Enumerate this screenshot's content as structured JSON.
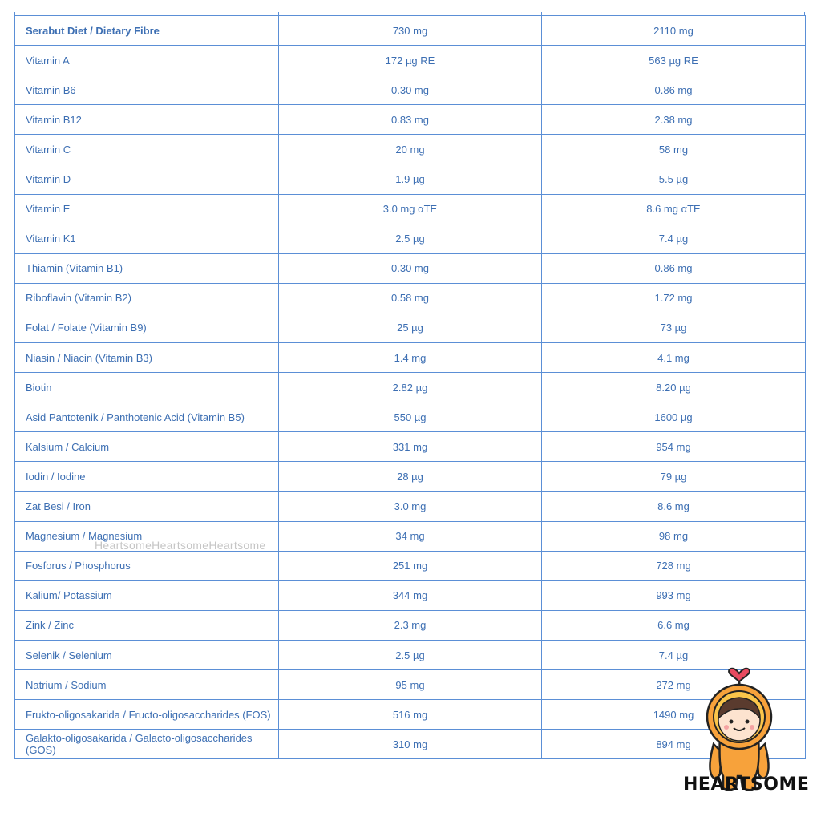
{
  "table": {
    "rows": [
      {
        "name": "Serabut Diet / Dietary Fibre",
        "col1": "730 mg",
        "col2": "2110 mg",
        "bold": true
      },
      {
        "name": "Vitamin A",
        "col1": "172 µg RE",
        "col2": "563 µg RE"
      },
      {
        "name": "Vitamin B6",
        "col1": "0.30 mg",
        "col2": "0.86 mg"
      },
      {
        "name": "Vitamin B12",
        "col1": "0.83 mg",
        "col2": "2.38 mg"
      },
      {
        "name": "Vitamin C",
        "col1": "20 mg",
        "col2": "58 mg"
      },
      {
        "name": "Vitamin D",
        "col1": "1.9 µg",
        "col2": "5.5 µg"
      },
      {
        "name": "Vitamin E",
        "col1": "3.0 mg αTE",
        "col2": "8.6 mg αTE"
      },
      {
        "name": "Vitamin K1",
        "col1": "2.5 µg",
        "col2": "7.4 µg"
      },
      {
        "name": "Thiamin (Vitamin B1)",
        "col1": "0.30 mg",
        "col2": "0.86 mg"
      },
      {
        "name": "Riboflavin (Vitamin B2)",
        "col1": "0.58 mg",
        "col2": "1.72 mg"
      },
      {
        "name": "Folat / Folate (Vitamin B9)",
        "col1": "25 µg",
        "col2": "73 µg"
      },
      {
        "name": "Niasin / Niacin (Vitamin B3)",
        "col1": "1.4 mg",
        "col2": "4.1 mg"
      },
      {
        "name": "Biotin",
        "col1": "2.82 µg",
        "col2": "8.20 µg"
      },
      {
        "name": "Asid Pantotenik / Panthotenic Acid (Vitamin B5)",
        "col1": "550 µg",
        "col2": "1600 µg"
      },
      {
        "name": "Kalsium / Calcium",
        "col1": "331 mg",
        "col2": "954 mg"
      },
      {
        "name": "Iodin / Iodine",
        "col1": "28 µg",
        "col2": "79 µg"
      },
      {
        "name": "Zat Besi / Iron",
        "col1": "3.0 mg",
        "col2": "8.6 mg"
      },
      {
        "name": "Magnesium / Magnesium",
        "col1": "34 mg",
        "col2": "98 mg"
      },
      {
        "name": "Fosforus / Phosphorus",
        "col1": "251 mg",
        "col2": "728 mg"
      },
      {
        "name": "Kalium/ Potassium",
        "col1": "344 mg",
        "col2": "993 mg"
      },
      {
        "name": "Zink / Zinc",
        "col1": "2.3 mg",
        "col2": "6.6 mg"
      },
      {
        "name": "Selenik / Selenium",
        "col1": "2.5 µg",
        "col2": "7.4 µg"
      },
      {
        "name": "Natrium / Sodium",
        "col1": "95 mg",
        "col2": "272 mg"
      },
      {
        "name": "Frukto-oligosakarida / Fructo-oligosaccharides (FOS)",
        "col1": "516 mg",
        "col2": "1490 mg"
      },
      {
        "name": "Galakto-oligosakarida / Galacto-oligosaccharides (GOS)",
        "col1": "310 mg",
        "col2": "894 mg"
      }
    ]
  },
  "watermark": "HeartsomeHeartsomeHeartsome",
  "brand": "HEARTSOME",
  "colors": {
    "text": "#3d6fb3",
    "border": "#5b8fd6",
    "mascot": "#f7a23b"
  }
}
